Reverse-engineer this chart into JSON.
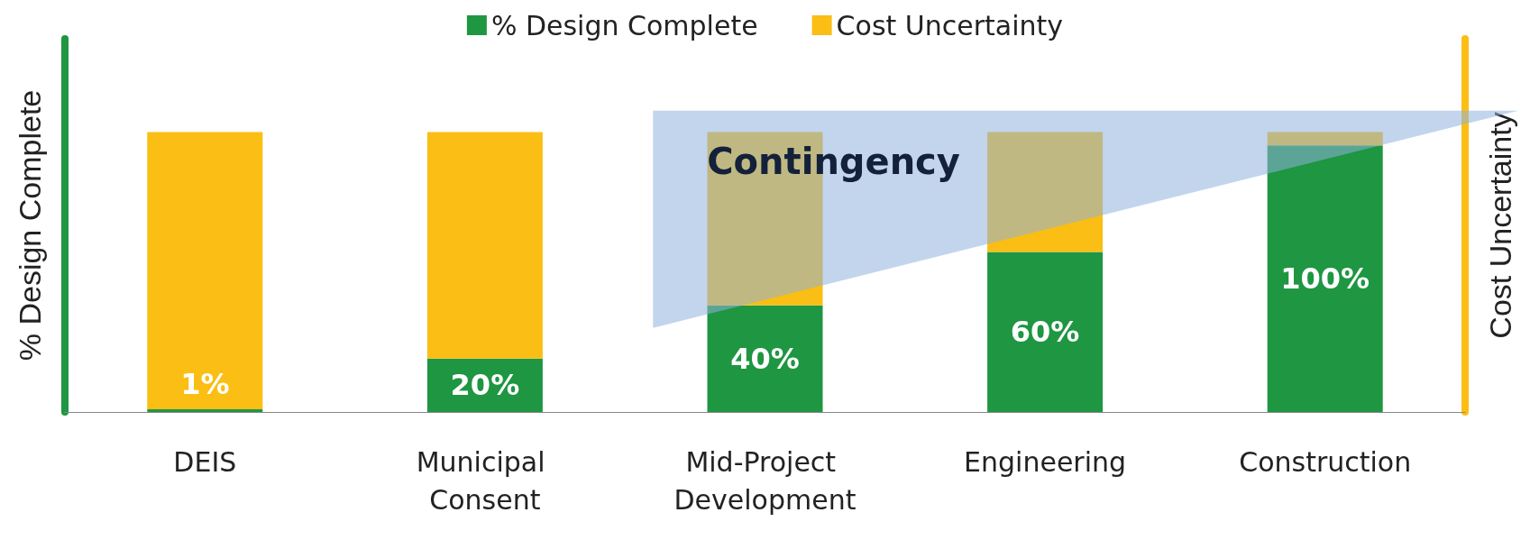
{
  "chart_data": {
    "type": "bar",
    "stacked": true,
    "ylim": [
      0,
      140
    ],
    "tick_labels": "x",
    "ylabel": "% Design Complete",
    "y2label": "Cost Uncertainty",
    "legend": "top",
    "categories": [
      "DEIS",
      "Municipal Consent",
      "Mid-Project Development",
      "Engineering",
      "Construction"
    ],
    "series": [
      {
        "name": "% Design Complete",
        "color": "#1e9642",
        "values": [
          1,
          20,
          40,
          60,
          100
        ],
        "value_labels": [
          "1%",
          "20%",
          "40%",
          "60%",
          "100%"
        ]
      },
      {
        "name": "Cost Uncertainty",
        "color": "#fbbe14",
        "values": [
          104,
          85,
          65,
          45,
          5
        ]
      }
    ],
    "annotations": [
      "Contingency"
    ]
  }
}
